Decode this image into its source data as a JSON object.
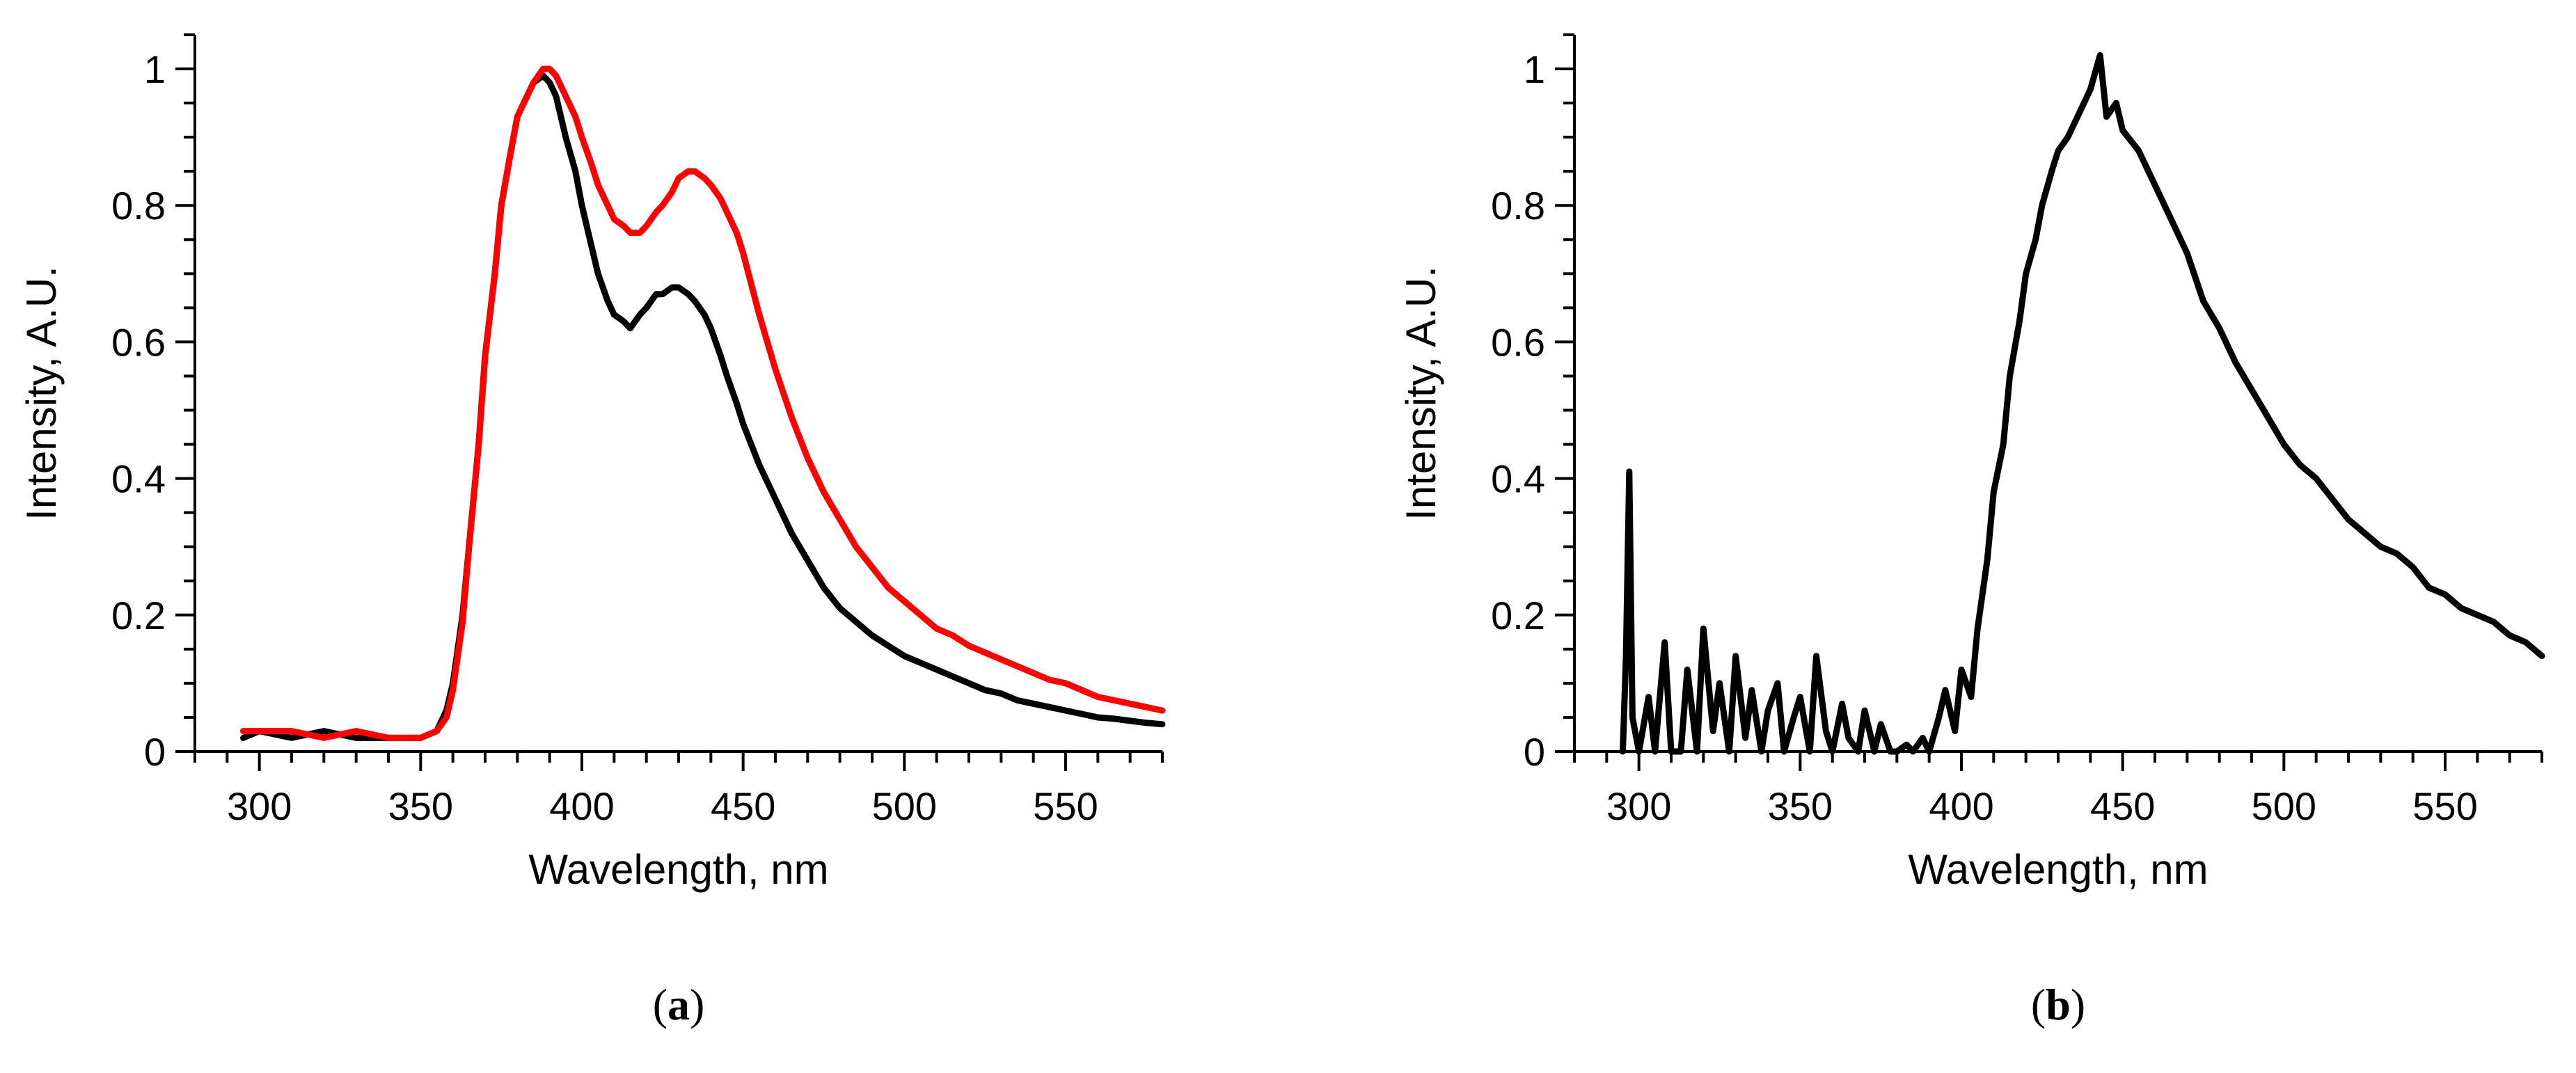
{
  "chart_data": [
    {
      "panel": "(a)",
      "panel_letter": "a",
      "type": "line",
      "xlabel": "Wavelength, nm",
      "ylabel": "Intensity, A.U.",
      "xlim": [
        280,
        580
      ],
      "ylim": [
        0,
        1.05
      ],
      "xticks": [
        300,
        350,
        400,
        450,
        500,
        550
      ],
      "yticks": [
        0,
        0.2,
        0.4,
        0.6,
        0.8,
        1
      ],
      "ytick_labels": [
        "0",
        "0.2",
        "0.4",
        "0.6",
        "0.8",
        "1"
      ],
      "series": [
        {
          "name": "black spectrum",
          "color": "#000000",
          "x": [
            295,
            300,
            310,
            320,
            330,
            340,
            350,
            355,
            358,
            360,
            363,
            365,
            368,
            370,
            373,
            375,
            378,
            380,
            383,
            385,
            388,
            390,
            392,
            395,
            398,
            400,
            403,
            405,
            408,
            410,
            413,
            415,
            418,
            420,
            423,
            425,
            428,
            430,
            433,
            435,
            438,
            440,
            443,
            445,
            448,
            450,
            455,
            460,
            465,
            470,
            475,
            480,
            485,
            490,
            495,
            500,
            505,
            510,
            515,
            520,
            525,
            530,
            535,
            540,
            545,
            550,
            555,
            560,
            565,
            570,
            575,
            580
          ],
          "values": [
            0.02,
            0.03,
            0.02,
            0.03,
            0.02,
            0.02,
            0.02,
            0.03,
            0.06,
            0.1,
            0.2,
            0.3,
            0.45,
            0.58,
            0.7,
            0.8,
            0.88,
            0.93,
            0.96,
            0.98,
            0.99,
            0.98,
            0.96,
            0.9,
            0.85,
            0.8,
            0.74,
            0.7,
            0.66,
            0.64,
            0.63,
            0.62,
            0.64,
            0.65,
            0.67,
            0.67,
            0.68,
            0.68,
            0.67,
            0.66,
            0.64,
            0.62,
            0.58,
            0.55,
            0.51,
            0.48,
            0.42,
            0.37,
            0.32,
            0.28,
            0.24,
            0.21,
            0.19,
            0.17,
            0.155,
            0.14,
            0.13,
            0.12,
            0.11,
            0.1,
            0.09,
            0.085,
            0.075,
            0.07,
            0.065,
            0.06,
            0.055,
            0.05,
            0.048,
            0.045,
            0.042,
            0.04
          ]
        },
        {
          "name": "red spectrum",
          "color": "#ff0000",
          "x": [
            295,
            300,
            310,
            320,
            330,
            340,
            350,
            355,
            358,
            360,
            363,
            365,
            368,
            370,
            373,
            375,
            378,
            380,
            383,
            385,
            388,
            390,
            392,
            395,
            398,
            400,
            403,
            405,
            408,
            410,
            413,
            415,
            418,
            420,
            423,
            425,
            428,
            430,
            433,
            435,
            438,
            440,
            443,
            445,
            448,
            450,
            455,
            460,
            465,
            470,
            475,
            480,
            485,
            490,
            495,
            500,
            505,
            510,
            515,
            520,
            525,
            530,
            535,
            540,
            545,
            550,
            555,
            560,
            565,
            570,
            575,
            580
          ],
          "values": [
            0.03,
            0.03,
            0.03,
            0.02,
            0.03,
            0.02,
            0.02,
            0.03,
            0.05,
            0.09,
            0.19,
            0.3,
            0.45,
            0.58,
            0.7,
            0.8,
            0.88,
            0.93,
            0.96,
            0.98,
            1.0,
            1.0,
            0.99,
            0.96,
            0.93,
            0.9,
            0.86,
            0.83,
            0.8,
            0.78,
            0.77,
            0.76,
            0.76,
            0.77,
            0.79,
            0.8,
            0.82,
            0.84,
            0.85,
            0.85,
            0.84,
            0.83,
            0.81,
            0.79,
            0.76,
            0.73,
            0.64,
            0.56,
            0.49,
            0.43,
            0.38,
            0.34,
            0.3,
            0.27,
            0.24,
            0.22,
            0.2,
            0.18,
            0.17,
            0.155,
            0.145,
            0.135,
            0.125,
            0.115,
            0.105,
            0.1,
            0.09,
            0.08,
            0.075,
            0.07,
            0.065,
            0.06
          ]
        }
      ]
    },
    {
      "panel": "(b)",
      "panel_letter": "b",
      "type": "line",
      "xlabel": "Wavelength, nm",
      "ylabel": "Intensity, A.U.",
      "xlim": [
        280,
        580
      ],
      "ylim": [
        0,
        1.05
      ],
      "xticks": [
        300,
        350,
        400,
        450,
        500,
        550
      ],
      "yticks": [
        0,
        0.2,
        0.4,
        0.6,
        0.8,
        1
      ],
      "ytick_labels": [
        "0",
        "0.2",
        "0.4",
        "0.6",
        "0.8",
        "1"
      ],
      "series": [
        {
          "name": "black spectrum",
          "color": "#000000",
          "x": [
            295,
            296,
            297,
            298,
            300,
            303,
            305,
            308,
            310,
            313,
            315,
            318,
            320,
            323,
            325,
            328,
            330,
            333,
            335,
            338,
            340,
            343,
            345,
            348,
            350,
            353,
            355,
            358,
            360,
            363,
            365,
            368,
            370,
            373,
            375,
            378,
            380,
            383,
            385,
            388,
            390,
            393,
            395,
            398,
            400,
            403,
            405,
            408,
            410,
            413,
            415,
            418,
            420,
            423,
            425,
            428,
            430,
            433,
            435,
            438,
            440,
            443,
            445,
            448,
            450,
            455,
            460,
            465,
            470,
            475,
            480,
            485,
            490,
            495,
            500,
            505,
            510,
            515,
            520,
            525,
            530,
            535,
            540,
            545,
            550,
            555,
            560,
            565,
            570,
            575,
            580
          ],
          "values": [
            0.0,
            0.14,
            0.41,
            0.05,
            0.0,
            0.08,
            0.0,
            0.16,
            0.0,
            0.0,
            0.12,
            0.0,
            0.18,
            0.03,
            0.1,
            0.0,
            0.14,
            0.02,
            0.09,
            0.0,
            0.06,
            0.1,
            0.0,
            0.05,
            0.08,
            0.0,
            0.14,
            0.03,
            0.0,
            0.07,
            0.02,
            0.0,
            0.06,
            0.0,
            0.04,
            0.0,
            0.0,
            0.01,
            0.0,
            0.02,
            0.0,
            0.05,
            0.09,
            0.03,
            0.12,
            0.08,
            0.18,
            0.28,
            0.38,
            0.45,
            0.55,
            0.63,
            0.7,
            0.75,
            0.8,
            0.85,
            0.88,
            0.9,
            0.92,
            0.95,
            0.97,
            1.02,
            0.93,
            0.95,
            0.91,
            0.88,
            0.83,
            0.78,
            0.73,
            0.66,
            0.62,
            0.57,
            0.53,
            0.49,
            0.45,
            0.42,
            0.4,
            0.37,
            0.34,
            0.32,
            0.3,
            0.29,
            0.27,
            0.24,
            0.23,
            0.21,
            0.2,
            0.19,
            0.17,
            0.16,
            0.14
          ]
        }
      ]
    }
  ]
}
